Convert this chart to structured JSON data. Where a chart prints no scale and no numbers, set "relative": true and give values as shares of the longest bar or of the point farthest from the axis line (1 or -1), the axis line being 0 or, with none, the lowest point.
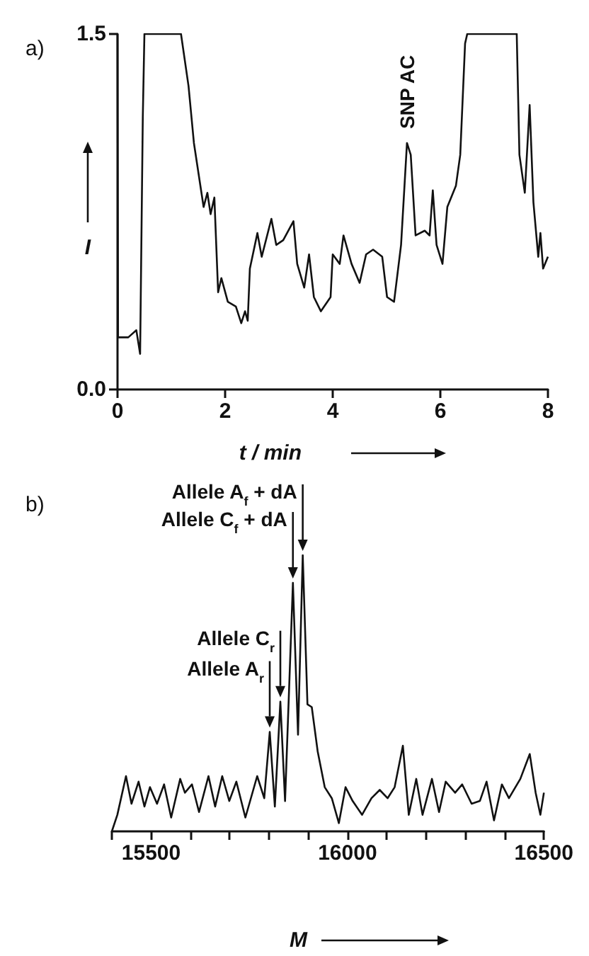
{
  "chart_data": [
    {
      "type": "line",
      "title": "a)",
      "xlabel": "t / min",
      "ylabel": "I",
      "xlim": [
        0,
        8
      ],
      "ylim": [
        0,
        1.5
      ],
      "xticks": [
        0,
        2,
        4,
        6,
        8
      ],
      "yticks": [
        {
          "value": 0,
          "label": "0.0"
        },
        {
          "value": 1.5,
          "label": "1.5"
        }
      ],
      "grid": false,
      "marker": "none",
      "line_style": "solid",
      "series": [
        {
          "color": "#111111",
          "x": [
            0,
            0.01,
            0.09,
            0.2,
            0.35,
            0.42,
            0.47,
            0.5,
            1.18,
            1.32,
            1.42,
            1.54,
            1.6,
            1.67,
            1.73,
            1.8,
            1.87,
            1.93,
            2.05,
            2.2,
            2.3,
            2.37,
            2.42,
            2.46,
            2.6,
            2.68,
            2.86,
            2.95,
            3.08,
            3.27,
            3.34,
            3.47,
            3.56,
            3.65,
            3.78,
            3.96,
            4.0,
            4.13,
            4.2,
            4.35,
            4.5,
            4.62,
            4.75,
            4.92,
            5.01,
            5.14,
            5.27,
            5.38,
            5.45,
            5.54,
            5.71,
            5.8,
            5.86,
            5.93,
            6.04,
            6.13,
            6.29,
            6.37,
            6.46,
            6.5,
            7.42,
            7.47,
            7.57,
            7.66,
            7.73,
            7.82,
            7.86,
            7.91,
            8.0
          ],
          "values": [
            1.5,
            0.22,
            0.22,
            0.22,
            0.25,
            0.15,
            1.15,
            1.5,
            1.5,
            1.28,
            1.04,
            0.86,
            0.77,
            0.83,
            0.74,
            0.81,
            0.41,
            0.47,
            0.37,
            0.35,
            0.28,
            0.33,
            0.29,
            0.51,
            0.66,
            0.56,
            0.72,
            0.61,
            0.63,
            0.71,
            0.53,
            0.43,
            0.57,
            0.39,
            0.33,
            0.39,
            0.57,
            0.53,
            0.65,
            0.53,
            0.45,
            0.57,
            0.59,
            0.56,
            0.39,
            0.37,
            0.61,
            1.04,
            0.99,
            0.65,
            0.67,
            0.65,
            0.84,
            0.61,
            0.53,
            0.77,
            0.86,
            0.99,
            1.46,
            1.5,
            1.5,
            0.99,
            0.83,
            1.2,
            0.79,
            0.56,
            0.66,
            0.51,
            0.56
          ]
        }
      ],
      "annotations": [
        {
          "text": "SNP AC",
          "x": 5.38,
          "y": 1.04
        }
      ]
    },
    {
      "type": "line",
      "title": "b)",
      "xlabel": "M",
      "relative": true,
      "tick_labels": "x",
      "xlim": [
        15400,
        16500
      ],
      "xticks": [
        {
          "value": 15400,
          "label": null
        },
        15500,
        {
          "value": 15600,
          "label": null
        },
        {
          "value": 15700,
          "label": null
        },
        {
          "value": 15800,
          "label": null
        },
        {
          "value": 15900,
          "label": null
        },
        16000,
        {
          "value": 16100,
          "label": null
        },
        {
          "value": 16200,
          "label": null
        },
        {
          "value": 16300,
          "label": null
        },
        {
          "value": 16400,
          "label": null
        },
        16500
      ],
      "grid": false,
      "marker": "none",
      "line_style": "solid",
      "series": [
        {
          "color": "#111111",
          "x": [
            15400,
            15414,
            15436,
            15450,
            15468,
            15483,
            15497,
            15515,
            15533,
            15551,
            15574,
            15586,
            15604,
            15622,
            15646,
            15663,
            15681,
            15699,
            15717,
            15740,
            15770,
            15788,
            15802,
            15815,
            15829,
            15841,
            15861,
            15874,
            15886,
            15898,
            15909,
            15924,
            15942,
            15960,
            15978,
            15995,
            16013,
            16037,
            16061,
            16082,
            16102,
            16120,
            16141,
            16156,
            16175,
            16191,
            16215,
            16233,
            16250,
            16274,
            16292,
            16316,
            16337,
            16354,
            16373,
            16393,
            16411,
            16440,
            16464,
            16479,
            16491,
            16500
          ],
          "values": [
            0,
            0.06,
            0.2,
            0.1,
            0.18,
            0.09,
            0.16,
            0.1,
            0.17,
            0.05,
            0.19,
            0.14,
            0.17,
            0.07,
            0.2,
            0.09,
            0.2,
            0.11,
            0.18,
            0.05,
            0.2,
            0.12,
            0.36,
            0.09,
            0.47,
            0.11,
            0.9,
            0.35,
            1,
            0.46,
            0.45,
            0.29,
            0.16,
            0.12,
            0.03,
            0.16,
            0.11,
            0.06,
            0.12,
            0.15,
            0.12,
            0.16,
            0.31,
            0.06,
            0.19,
            0.06,
            0.19,
            0.07,
            0.18,
            0.14,
            0.17,
            0.1,
            0.11,
            0.18,
            0.04,
            0.17,
            0.12,
            0.19,
            0.28,
            0.14,
            0.06,
            0.14
          ]
        }
      ],
      "annotations": [
        {
          "text": "Allele A$_{r}$",
          "x": 15802,
          "y": 0.36
        },
        {
          "text": "Allele C$_{r}$",
          "x": 15829,
          "y": 0.47
        },
        {
          "text": "Allele C$_{f}$ + dA",
          "x": 15861,
          "y": 0.9
        },
        {
          "text": "Allele A$_{f}$ + dA",
          "x": 15886,
          "y": 1
        }
      ]
    }
  ]
}
